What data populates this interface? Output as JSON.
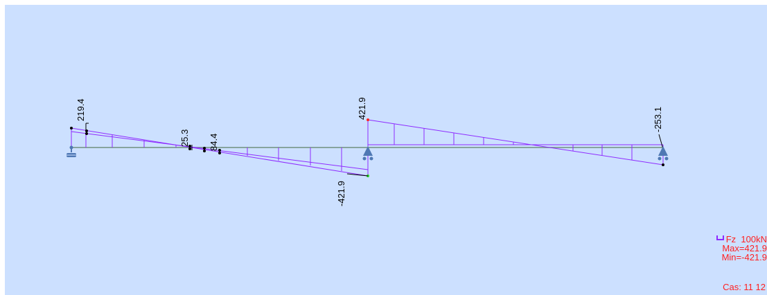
{
  "diagram": {
    "type": "shear-force-diagram",
    "labels": {
      "start_top": "219.4",
      "mid1": "25.3",
      "mid2": "84.4",
      "support_top": "421.9",
      "support_bottom": "-421.9",
      "end_top": "-253.1"
    },
    "colors": {
      "background": "#cce0ff",
      "beam": "#6f8f7f",
      "diagram": "#8e2bff",
      "support": "#4f78b4",
      "legend_text": "#ff2020"
    }
  },
  "legend": {
    "component": "Fz",
    "scale": "100kN",
    "max": "Max=421.9",
    "min": "Min=-421.9",
    "icon": "component-bracket-icon"
  },
  "case": "Cas: 11 12"
}
